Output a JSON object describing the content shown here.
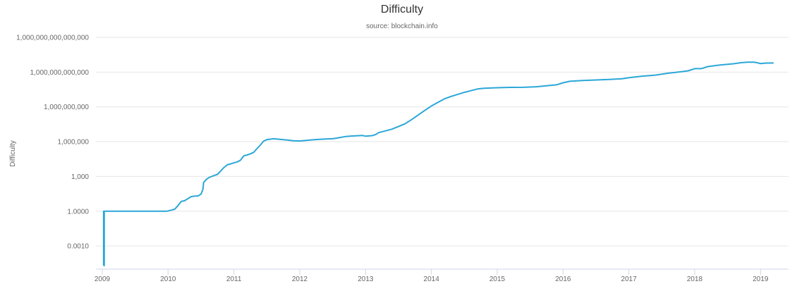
{
  "chart_data": {
    "type": "line",
    "title": "Difficulty",
    "subtitle": "source: blockchain.info",
    "xlabel": "",
    "ylabel": "Difficulty",
    "y_scale": "log",
    "ylim": [
      1e-05,
      1000000000000000
    ],
    "xlim": [
      2009.0,
      2019.25
    ],
    "grid": true,
    "legend": "none",
    "line_color": "#2ba7d8",
    "y_ticks": [
      {
        "value": 1000000000000000,
        "label": "1,000,000,000,000,000"
      },
      {
        "value": 1000000000000,
        "label": "1,000,000,000,000"
      },
      {
        "value": 1000000000,
        "label": "1,000,000,000"
      },
      {
        "value": 1000000,
        "label": "1,000,000"
      },
      {
        "value": 1000,
        "label": "1,000"
      },
      {
        "value": 1,
        "label": "1.0000"
      },
      {
        "value": 0.001,
        "label": "0.0010"
      }
    ],
    "x_ticks": [
      {
        "value": 2009,
        "label": "2009"
      },
      {
        "value": 2010,
        "label": "2010"
      },
      {
        "value": 2011,
        "label": "2011"
      },
      {
        "value": 2012,
        "label": "2012"
      },
      {
        "value": 2013,
        "label": "2013"
      },
      {
        "value": 2014,
        "label": "2014"
      },
      {
        "value": 2015,
        "label": "2015"
      },
      {
        "value": 2016,
        "label": "2016"
      },
      {
        "value": 2017,
        "label": "2017"
      },
      {
        "value": 2018,
        "label": "2018"
      },
      {
        "value": 2019,
        "label": "2019"
      }
    ],
    "series": [
      {
        "points": [
          [
            2009.02,
            2e-05
          ],
          [
            2009.02,
            1
          ],
          [
            2009.03,
            2e-05
          ],
          [
            2009.03,
            1
          ],
          [
            2009.04,
            1
          ],
          [
            2009.5,
            1
          ],
          [
            2009.98,
            1
          ],
          [
            2010.05,
            1.25
          ],
          [
            2010.1,
            1.5
          ],
          [
            2010.15,
            3
          ],
          [
            2010.2,
            7
          ],
          [
            2010.25,
            8
          ],
          [
            2010.3,
            12
          ],
          [
            2010.35,
            18
          ],
          [
            2010.4,
            20
          ],
          [
            2010.45,
            20
          ],
          [
            2010.5,
            30
          ],
          [
            2010.53,
            80
          ],
          [
            2010.54,
            300
          ],
          [
            2010.58,
            550
          ],
          [
            2010.62,
            800
          ],
          [
            2010.7,
            1200
          ],
          [
            2010.75,
            1500
          ],
          [
            2010.8,
            3000
          ],
          [
            2010.85,
            6000
          ],
          [
            2010.9,
            10000
          ],
          [
            2010.95,
            12000
          ],
          [
            2011.0,
            15000
          ],
          [
            2011.05,
            18000
          ],
          [
            2011.1,
            25000
          ],
          [
            2011.15,
            60000
          ],
          [
            2011.2,
            70000
          ],
          [
            2011.25,
            90000
          ],
          [
            2011.3,
            120000
          ],
          [
            2011.35,
            250000
          ],
          [
            2011.4,
            500000
          ],
          [
            2011.45,
            1100000
          ],
          [
            2011.5,
            1500000
          ],
          [
            2011.6,
            1800000
          ],
          [
            2011.7,
            1600000
          ],
          [
            2011.8,
            1400000
          ],
          [
            2011.9,
            1200000
          ],
          [
            2012.0,
            1150000
          ],
          [
            2012.1,
            1300000
          ],
          [
            2012.2,
            1450000
          ],
          [
            2012.3,
            1600000
          ],
          [
            2012.4,
            1700000
          ],
          [
            2012.5,
            1800000
          ],
          [
            2012.6,
            2200000
          ],
          [
            2012.7,
            2800000
          ],
          [
            2012.8,
            3100000
          ],
          [
            2012.9,
            3300000
          ],
          [
            2012.95,
            3400000
          ],
          [
            2013.0,
            3000000
          ],
          [
            2013.1,
            3300000
          ],
          [
            2013.15,
            4000000
          ],
          [
            2013.2,
            6000000
          ],
          [
            2013.3,
            8500000
          ],
          [
            2013.4,
            12000000
          ],
          [
            2013.5,
            20000000
          ],
          [
            2013.6,
            35000000
          ],
          [
            2013.7,
            80000000
          ],
          [
            2013.8,
            200000000
          ],
          [
            2013.9,
            500000000
          ],
          [
            2014.0,
            1200000000
          ],
          [
            2014.1,
            2500000000
          ],
          [
            2014.2,
            5000000000
          ],
          [
            2014.3,
            8000000000
          ],
          [
            2014.4,
            12000000000
          ],
          [
            2014.5,
            18000000000
          ],
          [
            2014.6,
            25000000000
          ],
          [
            2014.7,
            35000000000
          ],
          [
            2014.8,
            40000000000
          ],
          [
            2015.0,
            45000000000
          ],
          [
            2015.2,
            48000000000
          ],
          [
            2015.4,
            49000000000
          ],
          [
            2015.6,
            55000000000
          ],
          [
            2015.8,
            70000000000
          ],
          [
            2015.9,
            80000000000
          ],
          [
            2016.0,
            120000000000
          ],
          [
            2016.1,
            160000000000
          ],
          [
            2016.3,
            190000000000
          ],
          [
            2016.5,
            210000000000
          ],
          [
            2016.7,
            230000000000
          ],
          [
            2016.9,
            270000000000
          ],
          [
            2017.0,
            330000000000
          ],
          [
            2017.2,
            450000000000
          ],
          [
            2017.4,
            550000000000
          ],
          [
            2017.6,
            800000000000
          ],
          [
            2017.8,
            1100000000000
          ],
          [
            2017.9,
            1300000000000
          ],
          [
            2018.0,
            2000000000000
          ],
          [
            2018.1,
            2000000000000
          ],
          [
            2018.2,
            3000000000000
          ],
          [
            2018.4,
            4200000000000
          ],
          [
            2018.6,
            5300000000000
          ],
          [
            2018.7,
            6500000000000
          ],
          [
            2018.8,
            7200000000000
          ],
          [
            2018.9,
            7100000000000
          ],
          [
            2018.95,
            6500000000000
          ],
          [
            2019.0,
            5400000000000
          ],
          [
            2019.05,
            5800000000000
          ],
          [
            2019.1,
            6000000000000
          ],
          [
            2019.2,
            6100000000000
          ]
        ]
      }
    ]
  }
}
